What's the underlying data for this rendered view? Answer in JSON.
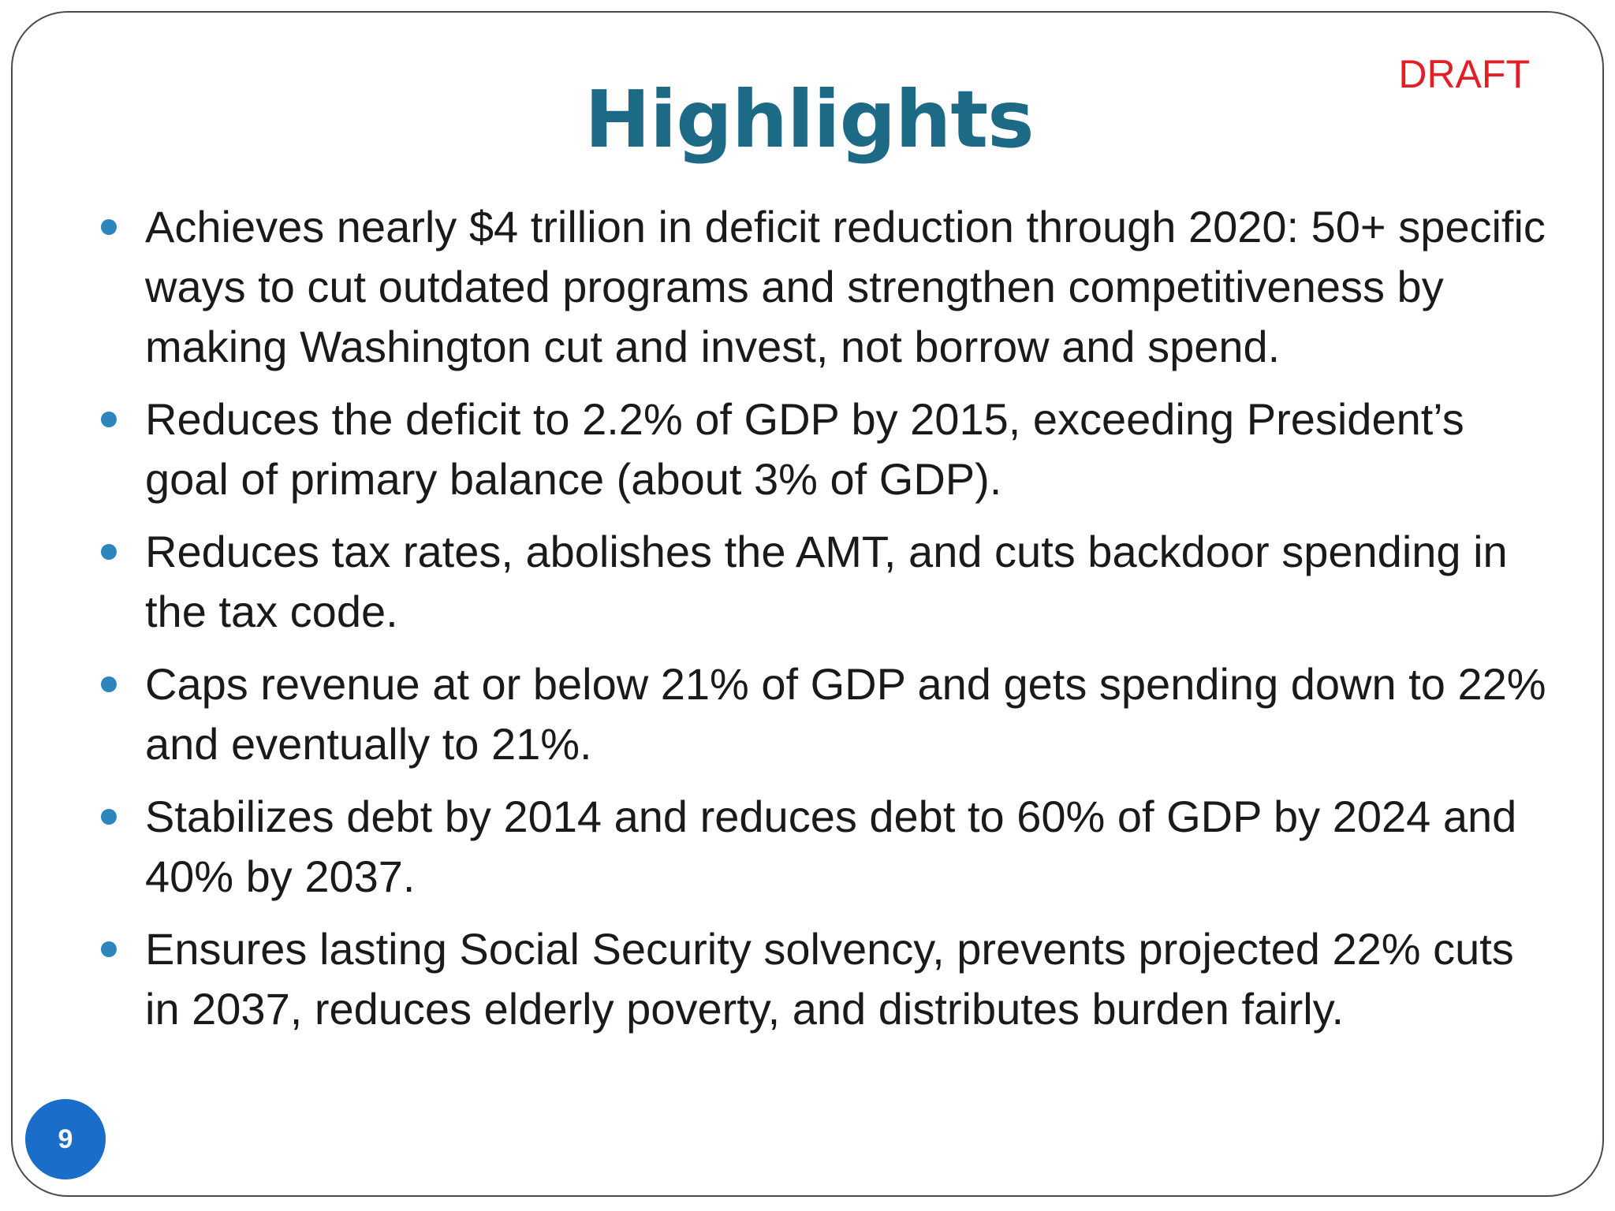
{
  "slide": {
    "title": "Highlights",
    "draft_label": "DRAFT",
    "page_number": "9",
    "accent_color": "#1c6a86",
    "bullet_color": "#2c86bd",
    "badge_color": "#1a6ec9",
    "draft_color": "#e41e26"
  },
  "bullets": [
    {
      "text": "Achieves nearly $4 trillion in deficit reduction through 2020: 50+ specific ways to cut outdated programs and strengthen competitiveness by making Washington cut and invest, not borrow and spend."
    },
    {
      "text": "Reduces the deficit to 2.2% of GDP by 2015, exceeding President’s goal of primary balance (about 3% of GDP)."
    },
    {
      "text": "Reduces tax rates, abolishes the AMT, and cuts backdoor spending in the tax code."
    },
    {
      "text": "Caps revenue at or below 21% of GDP and gets spending down to 22% and eventually to 21%."
    },
    {
      "text": "Stabilizes debt by 2014 and reduces debt to 60% of GDP by 2024 and 40% by 2037."
    },
    {
      "text": "Ensures lasting Social Security solvency, prevents projected 22% cuts in 2037, reduces elderly poverty, and distributes burden fairly."
    }
  ]
}
